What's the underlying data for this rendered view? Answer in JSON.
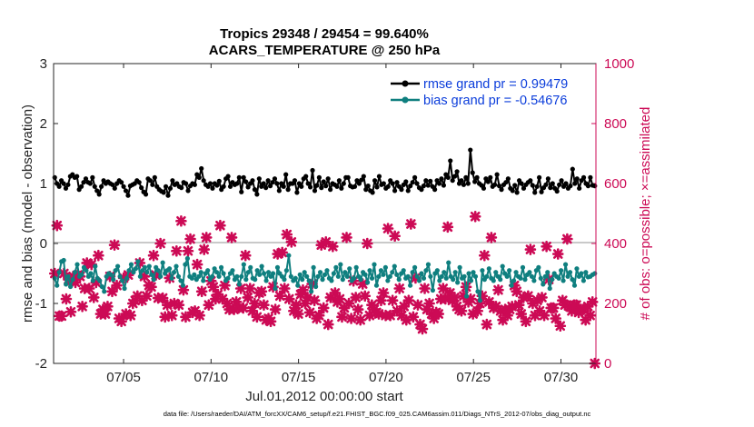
{
  "chart_data": {
    "type": "line",
    "title": "Tropics 29348 / 29454 = 99.640%",
    "subtitle": "ACARS_TEMPERATURE @ 250 hPa",
    "xlabel": "Jul.01,2012 00:00:00 start",
    "ylabel_left": "rmse and bias (model - observation)",
    "ylabel_right": "# of obs: o=possible; ×=assimilated",
    "footnote": "data file: /Users/raeder/DAI/ATM_forcXX/CAM6_setup/f.e21.FHIST_BGC.f09_025.CAM6assim.011/Diags_NTrS_2012-07/obs_diag_output.nc",
    "xlim": [
      1,
      32
    ],
    "ylim_left": [
      -2,
      3
    ],
    "ylim_right": [
      0,
      1000
    ],
    "grid": false,
    "legend_position": "top-right",
    "zero_line": 0,
    "x_ticks": [
      5,
      10,
      15,
      20,
      25,
      30
    ],
    "x_tick_labels": [
      "07/05",
      "07/10",
      "07/15",
      "07/20",
      "07/25",
      "07/30"
    ],
    "y_ticks_left": [
      -2,
      -1,
      0,
      1,
      2,
      3
    ],
    "y_tick_labels_left": [
      "-2",
      "-1",
      "0",
      "1",
      "2",
      "3"
    ],
    "y_ticks_right": [
      0,
      200,
      400,
      600,
      800,
      1000
    ],
    "y_tick_labels_right": [
      "0",
      "200",
      "400",
      "600",
      "800",
      "1000"
    ],
    "series": [
      {
        "name": "rmse grand pr = 0.99479",
        "color": "#000000",
        "axis": "left",
        "values": [
          1.1,
          1.0,
          0.95,
          1.05,
          1.0,
          0.92,
          0.98,
          1.12,
          1.15,
          1.1,
          1.12,
          0.9,
          0.95,
          1.02,
          1.08,
          1.02,
          1.0,
          1.1,
          0.95,
          0.88,
          0.82,
          0.95,
          1.05,
          1.0,
          1.03,
          1.0,
          0.98,
          0.92,
          1.0,
          1.05,
          1.02,
          0.95,
          0.88,
          0.8,
          0.96,
          0.98,
          1.0,
          1.05,
          1.02,
          0.93,
          0.86,
          0.82,
          1.08,
          1.05,
          0.98,
          1.1,
          0.95,
          0.9,
          0.87,
          0.85,
          0.95,
          0.8,
          0.92,
          1.05,
          0.98,
          1.0,
          0.95,
          0.93,
          1.02,
          1.0,
          0.88,
          0.96,
          1.0,
          0.98,
          1.15,
          1.1,
          1.25,
          1.05,
          0.98,
          0.95,
          1.0,
          0.92,
          1.0,
          0.97,
          1.04,
          0.9,
          0.95,
          1.08,
          1.12,
          0.95,
          1.02,
          0.98,
          1.0,
          1.1,
          0.86,
          1.1,
          1.03,
          0.94,
          1.0,
          1.05,
          0.9,
          0.82,
          1.08,
          0.95,
          1.0,
          0.93,
          1.05,
          0.96,
          1.02,
          1.08,
          1.0,
          0.88,
          1.0,
          0.95,
          1.15,
          0.9,
          1.0,
          1.0,
          1.05,
          0.85,
          1.0,
          0.95,
          1.08,
          1.12,
          1.0,
          0.94,
          1.22,
          0.88,
          0.97,
          1.1,
          0.93,
          1.03,
          0.96,
          1.08,
          0.9,
          1.0,
          0.98,
          0.95,
          1.05,
          0.92,
          1.0,
          1.1,
          1.1,
          0.96,
          0.94,
          0.95,
          1.05,
          1.0,
          1.06,
          1.12,
          0.9,
          0.96,
          0.88,
          0.85,
          1.05,
          0.94,
          1.12,
          0.98,
          1.0,
          0.92,
          0.95,
          1.05,
          1.0,
          0.88,
          1.02,
          0.95,
          0.9,
          0.98,
          1.03,
          0.88,
          0.96,
          1.02,
          1.1,
          1.0,
          0.93,
          0.9,
          0.96,
          1.05,
          0.97,
          1.04,
          0.95,
          0.9,
          1.05,
          1.0,
          1.08,
          0.97,
          1.15,
          1.1,
          1.38,
          1.05,
          1.12,
          1.2,
          1.0,
          1.05,
          0.98,
          1.1,
          1.0,
          1.56,
          1.18,
          1.03,
          1.1,
          1.0,
          0.97,
          0.92,
          1.08,
          1.03,
          1.1,
          0.95,
          0.98,
          1.15,
          0.96,
          0.9,
          0.98,
          1.02,
          1.08,
          0.92,
          0.88,
          0.97,
          0.85,
          1.05,
          1.0,
          0.92,
          0.98,
          1.02,
          1.05,
          0.97,
          0.85,
          0.95,
          1.1,
          0.86,
          0.93,
          0.98,
          1.08,
          0.93,
          1.0,
          0.92,
          0.87,
          0.98,
          1.05,
          0.95,
          1.0,
          0.92,
          0.96,
          1.24,
          1.0,
          1.08,
          0.92,
          1.05,
          1.1,
          1.0,
          0.96,
          1.1,
          0.97,
          0.96
        ]
      },
      {
        "name": "bias grand pr = -0.54676",
        "color": "#0f7f7f",
        "axis": "left",
        "values": [
          -0.58,
          -0.7,
          -0.48,
          -0.3,
          -0.28,
          -0.68,
          -0.55,
          -0.72,
          -0.6,
          -0.48,
          -0.35,
          -0.55,
          -0.52,
          -0.4,
          -0.45,
          -0.55,
          -0.5,
          -0.62,
          -0.38,
          -0.58,
          -0.62,
          -0.72,
          -0.8,
          -0.55,
          -0.5,
          -0.52,
          -0.6,
          -0.45,
          -0.38,
          -0.55,
          -0.62,
          -0.75,
          -0.58,
          -0.45,
          -0.35,
          -0.48,
          -0.42,
          -0.3,
          -0.55,
          -0.45,
          -0.4,
          -0.48,
          -0.38,
          -0.52,
          -0.6,
          -0.4,
          -0.45,
          -0.55,
          -0.32,
          -0.5,
          -0.45,
          -0.42,
          -0.58,
          -0.48,
          -0.38,
          -0.55,
          -0.62,
          -0.7,
          -0.35,
          -0.25,
          -0.55,
          -0.58,
          -0.52,
          -0.6,
          -0.55,
          -0.48,
          -0.62,
          -0.5,
          -0.45,
          -0.6,
          -0.55,
          -0.42,
          -0.48,
          -0.55,
          -0.4,
          -0.5,
          -0.62,
          -0.58,
          -0.5,
          -0.45,
          -0.6,
          -0.55,
          -0.68,
          -0.55,
          -0.35,
          -0.6,
          -0.48,
          -0.4,
          -0.58,
          -0.6,
          -0.45,
          -0.52,
          -0.38,
          -0.5,
          -0.62,
          -0.48,
          -0.55,
          -0.5,
          -0.75,
          -0.4,
          -0.5,
          -0.55,
          -0.6,
          -0.45,
          -0.2,
          -0.55,
          -0.62,
          -0.58,
          -0.7,
          -0.52,
          -0.6,
          -0.48,
          -0.55,
          -0.62,
          -0.8,
          -0.4,
          -0.72,
          -0.55,
          -0.48,
          -0.6,
          -0.52,
          -0.45,
          -0.58,
          -0.62,
          -0.5,
          -0.4,
          -0.55,
          -0.35,
          -0.6,
          -0.48,
          -0.55,
          -0.42,
          -0.62,
          -0.58,
          -0.4,
          -0.55,
          -0.6,
          -0.48,
          -0.52,
          -0.65,
          -0.45,
          -0.58,
          -0.35,
          -0.7,
          -0.55,
          -0.45,
          -0.52,
          -0.4,
          -0.62,
          -0.55,
          -0.48,
          -0.38,
          -0.52,
          -0.6,
          -0.5,
          -0.45,
          -0.58,
          -0.55,
          -0.7,
          -0.48,
          -0.4,
          -0.55,
          -0.62,
          -0.5,
          -0.58,
          -0.45,
          -0.35,
          -0.55,
          -0.78,
          -0.5,
          -0.45,
          -0.62,
          -0.55,
          -0.48,
          -0.58,
          -0.32,
          -0.55,
          -0.6,
          -0.48,
          -0.65,
          -0.4,
          -0.58,
          -0.55,
          -0.88,
          -0.5,
          -0.62,
          -0.48,
          -0.55,
          -0.8,
          -0.95,
          -0.45,
          -0.6,
          -0.55,
          -0.42,
          -0.58,
          -0.62,
          -0.48,
          -0.55,
          -0.6,
          -0.38,
          -0.5,
          -0.55,
          -0.45,
          -0.7,
          -0.62,
          -0.48,
          -0.55,
          -0.58,
          -0.4,
          -0.6,
          -0.52,
          -0.48,
          -0.55,
          -0.62,
          -0.45,
          -0.4,
          -0.58,
          -0.68,
          -0.55,
          -0.48,
          -0.75,
          -0.6,
          -0.5,
          -0.55,
          -0.58,
          -0.45,
          -0.62,
          -0.35,
          -0.55,
          -0.48,
          -0.6,
          -0.7,
          -0.42,
          -0.55,
          -0.5,
          -0.62,
          -0.48,
          -0.56,
          -0.55,
          -0.52,
          -0.5
        ]
      }
    ],
    "obs_counts": {
      "color": "#cc0a55",
      "axis": "right",
      "values": [
        300,
        460,
        158,
        158,
        300,
        215,
        280,
        172,
        290,
        270,
        295,
        290,
        190,
        250,
        335,
        250,
        330,
        220,
        270,
        360,
        165,
        180,
        165,
        190,
        290,
        240,
        395,
        260,
        150,
        140,
        285,
        165,
        295,
        160,
        200,
        210,
        225,
        335,
        210,
        290,
        225,
        260,
        255,
        360,
        295,
        218,
        400,
        218,
        155,
        195,
        285,
        160,
        200,
        375,
        195,
        475,
        245,
        155,
        375,
        415,
        170,
        175,
        330,
        160,
        240,
        380,
        420,
        195,
        275,
        255,
        215,
        230,
        460,
        215,
        260,
        200,
        180,
        420,
        180,
        205,
        185,
        250,
        185,
        360,
        220,
        250,
        175,
        200,
        155,
        235,
        240,
        195,
        145,
        150,
        140,
        255,
        180,
        365,
        225,
        370,
        250,
        430,
        215,
        405,
        175,
        195,
        165,
        230,
        245,
        200,
        220,
        170,
        265,
        210,
        150,
        160,
        395,
        185,
        405,
        130,
        220,
        390,
        235,
        205,
        215,
        155,
        185,
        420,
        200,
        150,
        275,
        220,
        180,
        145,
        265,
        225,
        400,
        160,
        195,
        180,
        170,
        165,
        210,
        235,
        160,
        450,
        160,
        210,
        425,
        175,
        250,
        160,
        190,
        145,
        210,
        465,
        155,
        285,
        195,
        130,
        115,
        250,
        180,
        200,
        165,
        150,
        170,
        165,
        215,
        250,
        215,
        455,
        235,
        210,
        220,
        190,
        180,
        175,
        225,
        255,
        205,
        215,
        165,
        490,
        175,
        200,
        225,
        360,
        130,
        205,
        420,
        185,
        190,
        245,
        175,
        145,
        180,
        160,
        180,
        190,
        260,
        240,
        195,
        165,
        220,
        140,
        225,
        380,
        200,
        160,
        210,
        175,
        220,
        160,
        390,
        280,
        185,
        185,
        150,
        365,
        125,
        210,
        195,
        415,
        190,
        175,
        195,
        195,
        170,
        180,
        180,
        145,
        190,
        160,
        205,
        0
      ]
    }
  }
}
